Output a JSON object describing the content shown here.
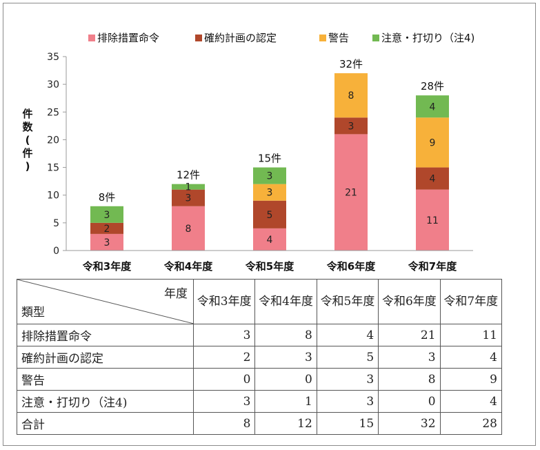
{
  "chart_data": {
    "type": "bar",
    "stacked": true,
    "categories": [
      "令和3年度",
      "令和4年度",
      "令和5年度",
      "令和6年度",
      "令和7年度"
    ],
    "series": [
      {
        "name": "排除措置命令",
        "values": [
          3,
          8,
          4,
          21,
          11
        ],
        "color": "#f07f8a"
      },
      {
        "name": "確約計画の認定",
        "values": [
          2,
          3,
          5,
          3,
          4
        ],
        "color": "#b0472b"
      },
      {
        "name": "警告",
        "values": [
          0,
          0,
          3,
          8,
          9
        ],
        "color": "#f7b13a"
      },
      {
        "name": "注意・打切り（注4)",
        "values": [
          3,
          1,
          3,
          0,
          4
        ],
        "color": "#72b952"
      }
    ],
    "totals": [
      "8件",
      "12件",
      "15件",
      "32件",
      "28件"
    ],
    "ylabel": "件数(件)",
    "ylim": [
      0,
      35
    ],
    "yticks": [
      0,
      5,
      10,
      15,
      20,
      25,
      30,
      35
    ],
    "legend": "top"
  },
  "table": {
    "corner_top": "年度",
    "corner_bottom": "類型",
    "headers": [
      "令和3年度",
      "令和4年度",
      "令和5年度",
      "令和6年度",
      "令和7年度"
    ],
    "rows": [
      {
        "label": "排除措置命令",
        "values": [
          "3",
          "8",
          "4",
          "21",
          "11"
        ]
      },
      {
        "label": "確約計画の認定",
        "values": [
          "2",
          "3",
          "5",
          "3",
          "4"
        ]
      },
      {
        "label": "警告",
        "values": [
          "0",
          "0",
          "3",
          "8",
          "9"
        ]
      },
      {
        "label": "注意・打切り（注4)",
        "values": [
          "3",
          "1",
          "3",
          "0",
          "4"
        ]
      },
      {
        "label": "合計",
        "values": [
          "8",
          "12",
          "15",
          "32",
          "28"
        ]
      }
    ]
  }
}
